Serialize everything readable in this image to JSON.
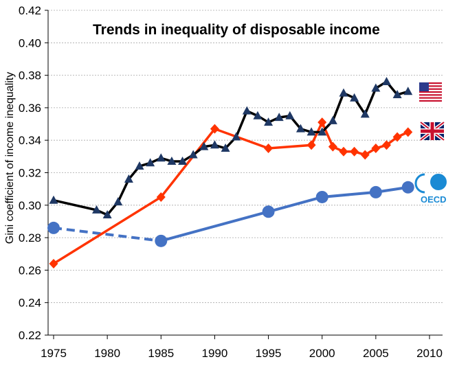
{
  "chart_data": {
    "type": "line",
    "title": "Trends in inequality of disposable income",
    "ylabel": "Gini coefficient of income inequality",
    "xlabel": "",
    "xlim": [
      1975,
      2010
    ],
    "ylim": [
      0.22,
      0.42
    ],
    "x_ticks": [
      1975,
      1980,
      1985,
      1990,
      1995,
      2000,
      2005,
      2010
    ],
    "y_ticks": [
      0.22,
      0.24,
      0.26,
      0.28,
      0.3,
      0.32,
      0.34,
      0.36,
      0.38,
      0.4,
      0.42
    ],
    "y_tick_labels": [
      "0.22",
      "0.24",
      "0.26",
      "0.28",
      "0.30",
      "0.32",
      "0.34",
      "0.36",
      "0.38",
      "0.40",
      "0.42"
    ],
    "x_tick_labels": [
      "1975",
      "1980",
      "1985",
      "1990",
      "1995",
      "2000",
      "2005",
      "2010"
    ],
    "grid": true,
    "series": [
      {
        "id": "us",
        "flag": "us-flag",
        "color": "#000000",
        "marker_color": "#1f3864",
        "marker": "triangle",
        "x": [
          1975,
          1979,
          1980,
          1981,
          1982,
          1983,
          1984,
          1985,
          1986,
          1987,
          1988,
          1989,
          1990,
          1991,
          1992,
          1993,
          1994,
          1995,
          1996,
          1997,
          1998,
          1999,
          2000,
          2001,
          2002,
          2003,
          2004,
          2005,
          2006,
          2007,
          2008
        ],
        "y": [
          0.303,
          0.297,
          0.294,
          0.302,
          0.316,
          0.324,
          0.326,
          0.329,
          0.327,
          0.327,
          0.331,
          0.336,
          0.337,
          0.335,
          0.342,
          0.358,
          0.355,
          0.351,
          0.354,
          0.355,
          0.347,
          0.345,
          0.345,
          0.352,
          0.369,
          0.366,
          0.356,
          0.372,
          0.376,
          0.368,
          0.37
        ]
      },
      {
        "id": "uk",
        "flag": "uk-flag",
        "color": "#ff3300",
        "marker_color": "#ff3300",
        "marker": "diamond",
        "x": [
          1975,
          1985,
          1990,
          1995,
          1999,
          2000,
          2001,
          2002,
          2003,
          2004,
          2005,
          2006,
          2007,
          2008
        ],
        "y": [
          0.264,
          0.305,
          0.347,
          0.335,
          0.337,
          0.351,
          0.336,
          0.333,
          0.333,
          0.331,
          0.335,
          0.337,
          0.342,
          0.345
        ]
      },
      {
        "id": "oecd",
        "flag": "oecd-logo",
        "color": "#4472c4",
        "marker_color": "#4472c4",
        "marker": "circle",
        "dashed_until": 1985,
        "x": [
          1975,
          1985,
          1995,
          2000,
          2005,
          2008
        ],
        "y": [
          0.286,
          0.278,
          0.296,
          0.305,
          0.308,
          0.311
        ]
      }
    ],
    "legend_logos": {
      "oecd_text": "OECD"
    }
  }
}
